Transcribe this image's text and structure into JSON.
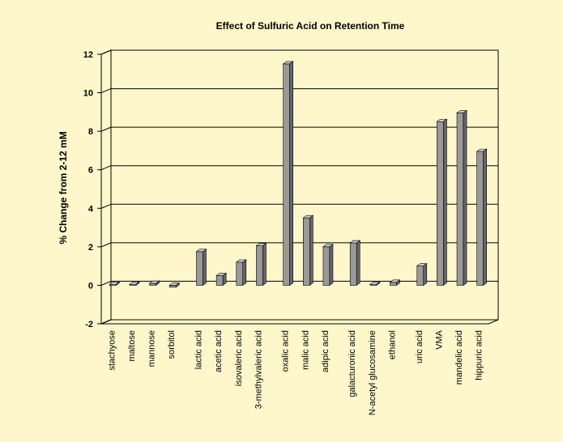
{
  "chart_data": {
    "type": "bar3d",
    "title": "Effect of Sulfuric Acid on Retention Time",
    "y_label": "% Change from 2-12 mM",
    "categories": [
      "stachyose",
      "maltose",
      "mannose",
      "sorbitol",
      null,
      "lactic acid",
      "acetic acid",
      "isovaleric acid",
      "3-methylvaleric acid",
      null,
      "oxalic acid",
      "malic acid",
      "adipic acid",
      null,
      "galacturonic acid",
      "N-acetyl glucosamine",
      "ethanol",
      null,
      "uric acid",
      "VMA",
      "mandelic acid",
      "hippuric acid"
    ],
    "values": [
      0.05,
      0.05,
      0.1,
      -0.1,
      null,
      1.75,
      0.5,
      1.2,
      2.05,
      null,
      11.5,
      3.5,
      2.0,
      null,
      2.2,
      0.05,
      0.15,
      null,
      1.0,
      8.5,
      8.95,
      6.95
    ],
    "color": "#999999",
    "ylim": [
      -2,
      12
    ],
    "yticks": [
      -2,
      0,
      2,
      4,
      6,
      8,
      10,
      12
    ],
    "grid": true
  }
}
